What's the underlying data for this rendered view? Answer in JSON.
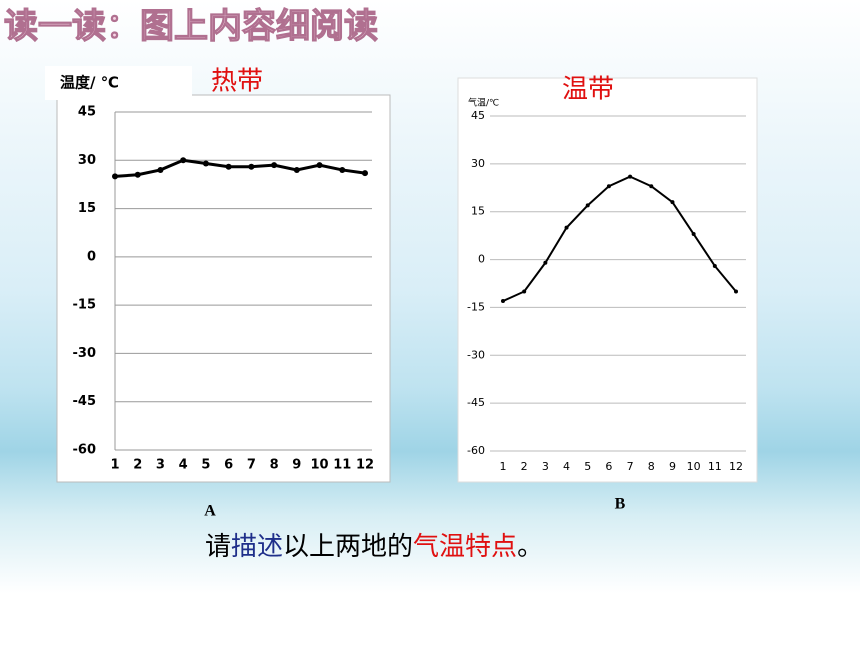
{
  "header": {
    "title": "读一读：图上内容细阅读"
  },
  "chart_data": [
    {
      "type": "line",
      "title": "热带",
      "label": "A",
      "ylabel": "温度/ ℃",
      "categories": [
        "1",
        "2",
        "3",
        "4",
        "5",
        "6",
        "7",
        "8",
        "9",
        "10",
        "11",
        "12"
      ],
      "values": [
        25,
        25.5,
        27,
        30,
        29,
        28,
        28,
        28.5,
        27,
        28.5,
        27,
        26
      ],
      "color": "#000000",
      "ylim": [
        -60,
        45
      ],
      "yticks": [
        -60,
        -45,
        -30,
        -15,
        0,
        15,
        30,
        45
      ],
      "grid": true
    },
    {
      "type": "line",
      "title": "温带",
      "label": "B",
      "ylabel": "气温/℃",
      "categories": [
        "1",
        "2",
        "3",
        "4",
        "5",
        "6",
        "7",
        "8",
        "9",
        "10",
        "11",
        "12"
      ],
      "values": [
        -13,
        -10,
        -1,
        10,
        17,
        23,
        26,
        23,
        18,
        8,
        -2,
        -10
      ],
      "color": "#000000",
      "ylim": [
        -60,
        45
      ],
      "yticks": [
        -60,
        -45,
        -30,
        -15,
        0,
        15,
        30,
        45
      ],
      "grid": true
    }
  ],
  "question": [
    {
      "text": "请",
      "color": "#000000"
    },
    {
      "text": "描述",
      "color": "#1f2f8a"
    },
    {
      "text": "以上两地的",
      "color": "#000000"
    },
    {
      "text": "气温特点",
      "color": "#e01010"
    },
    {
      "text": "。",
      "color": "#000000"
    }
  ]
}
